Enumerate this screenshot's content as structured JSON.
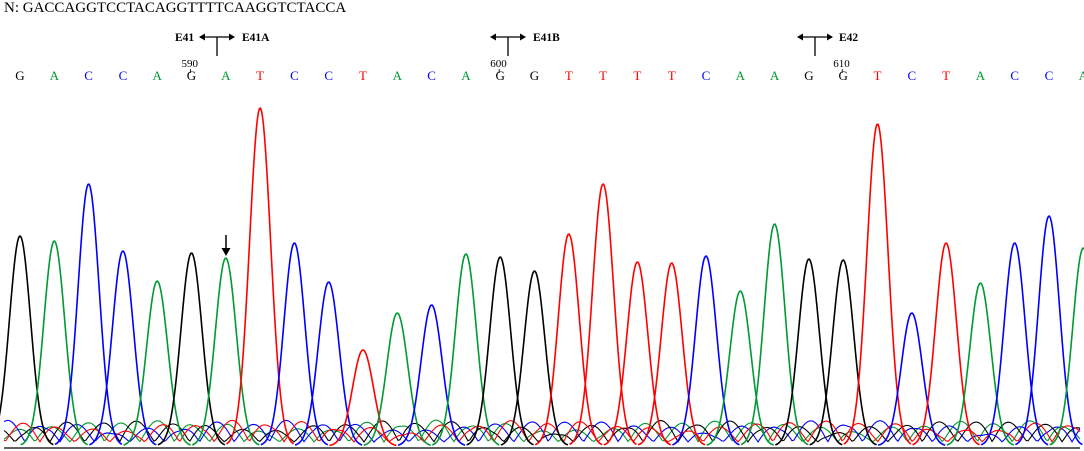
{
  "header": {
    "sequence_line": "N: GACCAGGTCCTACAGGTTTTCAAGGTCTACCA"
  },
  "colors": {
    "A": "#009933",
    "C": "#0000ff",
    "G": "#000000",
    "T": "#ff0000"
  },
  "markers": [
    {
      "left_label": "E41",
      "right_label": "E41A"
    },
    {
      "left_label": "",
      "right_label": "E41B"
    },
    {
      "left_label": "",
      "right_label": "E42"
    }
  ],
  "positions": [
    "590",
    "600",
    "610"
  ],
  "chart_data": {
    "type": "line",
    "bases": [
      "G",
      "A",
      "C",
      "C",
      "A",
      "G",
      "A",
      "T",
      "C",
      "C",
      "T",
      "A",
      "C",
      "A",
      "G",
      "G",
      "T",
      "T",
      "T",
      "T",
      "C",
      "A",
      "A",
      "G",
      "G",
      "T",
      "C",
      "T",
      "A",
      "C",
      "C",
      "A"
    ],
    "peak_heights": [
      210,
      205,
      262,
      195,
      165,
      193,
      188,
      338,
      203,
      164,
      96,
      133,
      141,
      192,
      189,
      175,
      212,
      262,
      184,
      183,
      190,
      155,
      222,
      187,
      186,
      322,
      133,
      203,
      163,
      203,
      230,
      198
    ],
    "position_labels": [
      {
        "text": "590",
        "base_index": 5
      },
      {
        "text": "600",
        "base_index": 14
      },
      {
        "text": "610",
        "base_index": 24
      }
    ],
    "annotation": {
      "type": "arrow-down",
      "base_index": 6
    }
  }
}
